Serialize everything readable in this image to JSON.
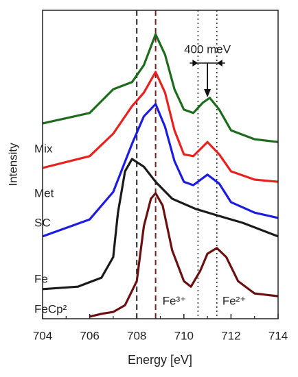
{
  "chart_data": {
    "type": "line",
    "x_label": "Energy [eV]",
    "y_label": "Intensity",
    "xlim": [
      704,
      714
    ],
    "xticks": [
      704,
      706,
      708,
      710,
      712,
      714
    ],
    "ylim": [
      0,
      100
    ],
    "series": [
      {
        "name": "Mix",
        "color": "#1d6b1d",
        "x": [
          704,
          706,
          707,
          707.8,
          708.3,
          708.8,
          709.2,
          709.6,
          710,
          710.4,
          710.8,
          711.1,
          711.5,
          712,
          713,
          714
        ],
        "values": [
          63.3,
          66.7,
          74.4,
          76.7,
          82.2,
          92.2,
          85.6,
          74.4,
          67.8,
          66.7,
          70.0,
          71.6,
          67.8,
          61.1,
          58.2,
          57.3
        ]
      },
      {
        "name": "Met",
        "color": "#e8201e",
        "x": [
          704,
          706,
          707,
          707.8,
          708.3,
          708.8,
          709.2,
          709.6,
          710,
          710.4,
          711,
          711.5,
          712,
          713,
          714
        ],
        "values": [
          48.9,
          52.7,
          60.0,
          68.9,
          73.3,
          80.0,
          73.3,
          61.1,
          53.3,
          52.7,
          57.3,
          53.3,
          47.8,
          45.1,
          44.4
        ]
      },
      {
        "name": "SC",
        "color": "#1c1ce0",
        "x": [
          704,
          706,
          707,
          707.8,
          708.3,
          708.8,
          709.2,
          709.6,
          710,
          710.4,
          711,
          711.5,
          712,
          713,
          714
        ],
        "values": [
          26.7,
          32.2,
          41.1,
          56.7,
          65.6,
          69.6,
          62.2,
          51.1,
          44.4,
          43.3,
          46.7,
          43.8,
          37.8,
          34.4,
          32.7
        ]
      },
      {
        "name": "Fe",
        "color": "#1a1a1a",
        "x": [
          704,
          705.5,
          706.5,
          707,
          707.2,
          707.5,
          707.8,
          708.3,
          708.8,
          709.5,
          710.5,
          711.5,
          712.5,
          714
        ],
        "values": [
          9.6,
          10.4,
          13.3,
          20.0,
          34.4,
          47.8,
          51.8,
          49.3,
          44.4,
          38.9,
          35.6,
          33.3,
          31.1,
          26.7
        ]
      },
      {
        "name": "FeCp²",
        "color": "#6b1010",
        "x": [
          706,
          706.5,
          707,
          707.5,
          708,
          708.3,
          708.6,
          708.8,
          709.1,
          709.5,
          710,
          710.3,
          710.7,
          711,
          711.4,
          711.8,
          712.3,
          713,
          714
        ],
        "values": [
          0.7,
          1.6,
          2.2,
          4.4,
          12.2,
          30.0,
          38.9,
          40.7,
          36.7,
          22.2,
          12.2,
          10.4,
          15.6,
          21.1,
          22.9,
          20.0,
          12.2,
          8.2,
          7.3
        ]
      }
    ],
    "vlines": [
      {
        "x": 708.0,
        "color": "#222222",
        "style": "dashed"
      },
      {
        "x": 708.8,
        "color": "#7a1f1f",
        "style": "dashed"
      },
      {
        "x": 710.6,
        "color": "#222222",
        "style": "dotted"
      },
      {
        "x": 711.4,
        "color": "#222222",
        "style": "dotted"
      }
    ],
    "annotations": {
      "split": "400 meV",
      "fe3": "Fe³⁺",
      "fe2": "Fe²⁺"
    }
  }
}
